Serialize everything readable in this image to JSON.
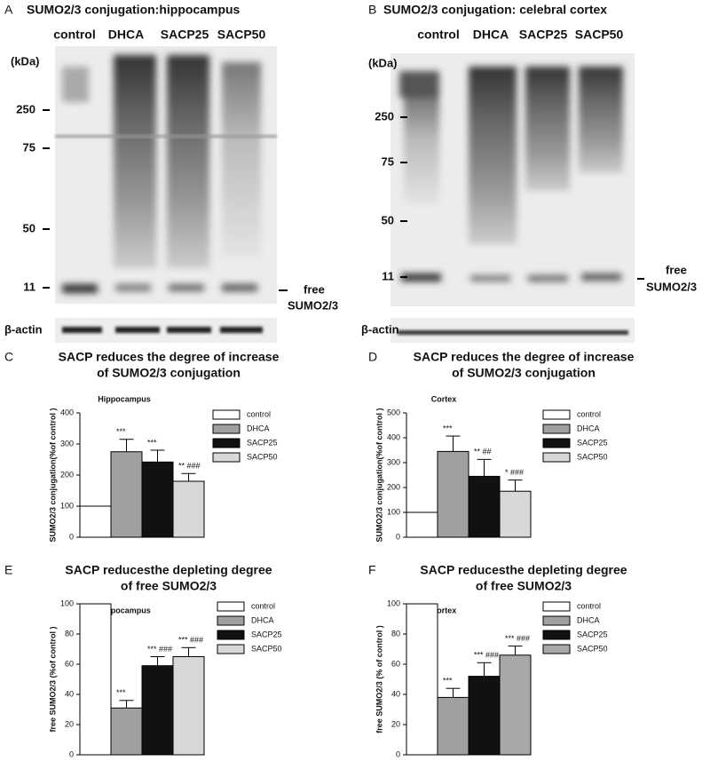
{
  "panels": [
    {
      "label": "A",
      "title": "SUMO2/3 conjugation:hippocampus",
      "lanes": [
        "control",
        "DHCA",
        "SACP25",
        "SACP50"
      ],
      "kda_label": "(kDa)",
      "markers": [
        250,
        75,
        50,
        11
      ],
      "free_label": [
        "free",
        "SUMO2/3"
      ],
      "loading_label": "β-actin"
    },
    {
      "label": "B",
      "title": "SUMO2/3 conjugation: celebral cortex",
      "lanes": [
        "control",
        "DHCA",
        "SACP25",
        "SACP50"
      ],
      "kda_label": "(kDa)",
      "markers": [
        250,
        75,
        50,
        11
      ],
      "free_label": [
        "free",
        "SUMO2/3"
      ],
      "loading_label": "β-actin"
    }
  ],
  "chart_data": [
    {
      "type": "bar",
      "panel": "C",
      "title": [
        "SACP reduces the degree of increase",
        "of SUMO2/3 conjugation"
      ],
      "subtitle": "Hippocampus",
      "ylabel": "SUMO2/3 conjugation(%of control )",
      "categories": [
        "control",
        "DHCA",
        "SACP25",
        "SACP50"
      ],
      "values": [
        100,
        275,
        242,
        180
      ],
      "errors": [
        null,
        40,
        38,
        25
      ],
      "colors": [
        "#ffffff",
        "#a0a0a0",
        "#111111",
        "#d8d8d8"
      ],
      "annotations": [
        null,
        "***",
        "***",
        "** ###"
      ],
      "ylim": [
        0,
        400
      ],
      "yticks": [
        0,
        100,
        200,
        300,
        400
      ]
    },
    {
      "type": "bar",
      "panel": "D",
      "title": [
        "SACP reduces the degree of increase",
        "of SUMO2/3 conjugation"
      ],
      "subtitle": "Cortex",
      "ylabel": "SUMO2/3 conjugation(%of control )",
      "categories": [
        "control",
        "DHCA",
        "SACP25",
        "SACP50"
      ],
      "values": [
        100,
        345,
        245,
        185
      ],
      "errors": [
        null,
        62,
        68,
        45
      ],
      "colors": [
        "#ffffff",
        "#a0a0a0",
        "#111111",
        "#d8d8d8"
      ],
      "annotations": [
        null,
        "***",
        "** ##",
        "* ###"
      ],
      "ylim": [
        0,
        500
      ],
      "yticks": [
        0,
        100,
        200,
        300,
        400,
        500
      ]
    },
    {
      "type": "bar",
      "panel": "E",
      "title": [
        "SACP reducesthe depleting degree",
        "of free SUMO2/3"
      ],
      "subtitle": "Hippocampus",
      "ylabel": "free SUMO2/3 (%of control )",
      "categories": [
        "control",
        "DHCA",
        "SACP25",
        "SACP50"
      ],
      "values": [
        100,
        31,
        59,
        65
      ],
      "errors": [
        null,
        5,
        6,
        6
      ],
      "colors": [
        "#ffffff",
        "#a0a0a0",
        "#111111",
        "#d8d8d8"
      ],
      "annotations": [
        null,
        "***",
        "*** ###",
        "*** ###"
      ],
      "ylim": [
        0,
        100
      ],
      "yticks": [
        0,
        20,
        40,
        60,
        80,
        100
      ]
    },
    {
      "type": "bar",
      "panel": "F",
      "title": [
        "SACP reducesthe depleting degree",
        "of free SUMO2/3"
      ],
      "subtitle": "Cortex",
      "ylabel": "free SUMO2/3 (% of control )",
      "categories": [
        "control",
        "DHCA",
        "SACP25",
        "SACP50"
      ],
      "values": [
        100,
        38,
        52,
        66
      ],
      "errors": [
        null,
        6,
        9,
        6
      ],
      "colors": [
        "#ffffff",
        "#a0a0a0",
        "#111111",
        "#a8a8a8"
      ],
      "annotations": [
        null,
        "***",
        "*** ###",
        "*** ###"
      ],
      "ylim": [
        0,
        100
      ],
      "yticks": [
        0,
        20,
        40,
        60,
        80,
        100
      ]
    }
  ]
}
